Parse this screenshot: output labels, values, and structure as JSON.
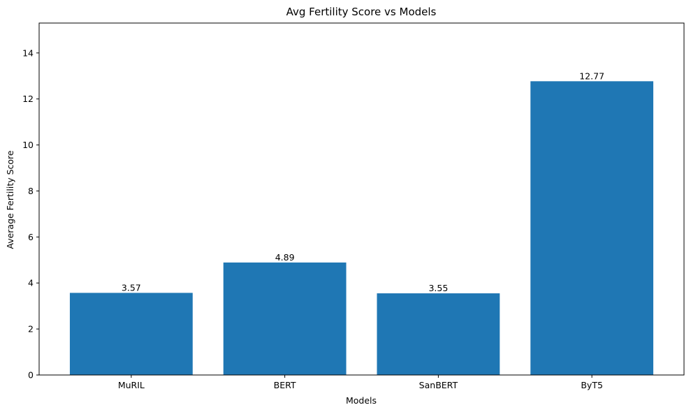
{
  "chart_data": {
    "type": "bar",
    "title": "Avg Fertility Score vs Models",
    "xlabel": "Models",
    "ylabel": "Average Fertility Score",
    "categories": [
      "MuRIL",
      "BERT",
      "SanBERT",
      "ByT5"
    ],
    "values": [
      3.57,
      4.89,
      3.55,
      12.77
    ],
    "data_labels": [
      "3.57",
      "4.89",
      "3.55",
      "12.77"
    ],
    "yticks": [
      0,
      2,
      4,
      6,
      8,
      10,
      12,
      14
    ],
    "ylim": [
      0,
      15.3
    ],
    "grid": false,
    "legend": "none",
    "bar_color": "#1f77b4"
  }
}
